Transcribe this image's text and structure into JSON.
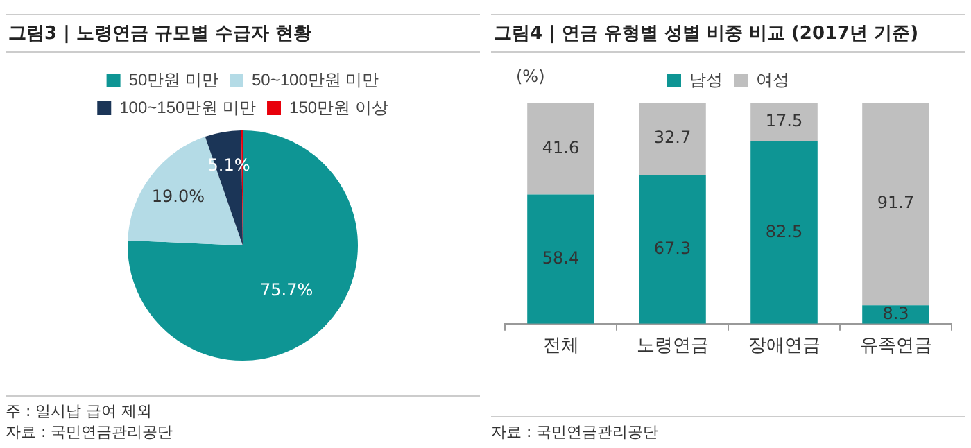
{
  "chart_data": [
    {
      "type": "pie",
      "title": "그림3 | 노령연금 규모별 수급자 현황",
      "categories": [
        "50만원 미만",
        "50~100만원 미만",
        "100~150만원 미만",
        "150만원 이상"
      ],
      "values": [
        75.7,
        19.0,
        5.1,
        0.2
      ],
      "colors": [
        "#0e9594",
        "#b4dbe6",
        "#1b3557",
        "#e8000b"
      ],
      "value_labels": [
        "75.7%",
        "19.0%",
        "5.1%",
        null
      ],
      "legend": "top",
      "annotations": [
        "주 : 일시납 급여 제외",
        "자료 : 국민연금관리공단"
      ]
    },
    {
      "type": "bar",
      "title": "그림4 | 연금 유형별 성별 비중 비교 (2017년 기준)",
      "ylabel": "(%)",
      "categories": [
        "전체",
        "노령연금",
        "장애연금",
        "유족연금"
      ],
      "series": [
        {
          "name": "남성",
          "color": "#0e9594",
          "values": [
            58.4,
            67.3,
            82.5,
            8.3
          ]
        },
        {
          "name": "여성",
          "color": "#bfbfbf",
          "values": [
            41.6,
            32.7,
            17.5,
            91.7
          ]
        }
      ],
      "stacked": true,
      "data_labels": true,
      "legend": "top",
      "grid": false,
      "annotations": [
        "자료 : 국민연금관리공단"
      ]
    }
  ]
}
